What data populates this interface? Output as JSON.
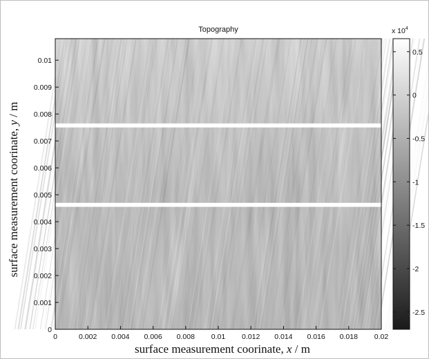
{
  "chart_data": {
    "type": "heatmap",
    "title": "Topography",
    "xlabel_prefix": "surface measurement coorinate, ",
    "xlabel_var": "x",
    "xlabel_suffix": " / m",
    "ylabel_prefix": "surface measurement coorinate, ",
    "ylabel_var": "y",
    "ylabel_suffix": " / m",
    "xlim": [
      0,
      0.02
    ],
    "ylim": [
      0,
      0.0108
    ],
    "x_ticks": [
      0,
      0.002,
      0.004,
      0.006,
      0.008,
      0.01,
      0.012,
      0.014,
      0.016,
      0.018,
      0.02
    ],
    "x_tick_labels": [
      "0",
      "0.002",
      "0.004",
      "0.006",
      "0.008",
      "0.01",
      "0.012",
      "0.014",
      "0.016",
      "0.018",
      "0.02"
    ],
    "y_ticks": [
      0,
      0.001,
      0.002,
      0.003,
      0.004,
      0.005,
      0.006,
      0.007,
      0.008,
      0.009,
      0.01
    ],
    "y_tick_labels": [
      "0",
      "0.001",
      "0.002",
      "0.003",
      "0.004",
      "0.005",
      "0.006",
      "0.007",
      "0.008",
      "0.009",
      "0.01"
    ],
    "colorbar": {
      "colormap": "gray",
      "multiplier_label": "x 10",
      "multiplier_exponent": "4",
      "range": [
        -2.7,
        0.65
      ],
      "ticks": [
        0.5,
        0,
        -0.5,
        -1,
        -1.5,
        -2,
        -2.5
      ],
      "tick_labels": [
        "0.5",
        "0",
        "-0.5",
        "-1",
        "-1.5",
        "-2",
        "-2.5"
      ]
    },
    "gap_bands_y": [
      [
        0.00455,
        0.0047
      ],
      [
        0.0075,
        0.00765
      ]
    ],
    "grid": false,
    "legend": "none"
  },
  "colors": {
    "surface_light": "#dcdcdc",
    "surface_mid": "#bdbdbd",
    "surface_dark": "#9e9e9e",
    "gap": "#ffffff",
    "axis": "#111111"
  }
}
